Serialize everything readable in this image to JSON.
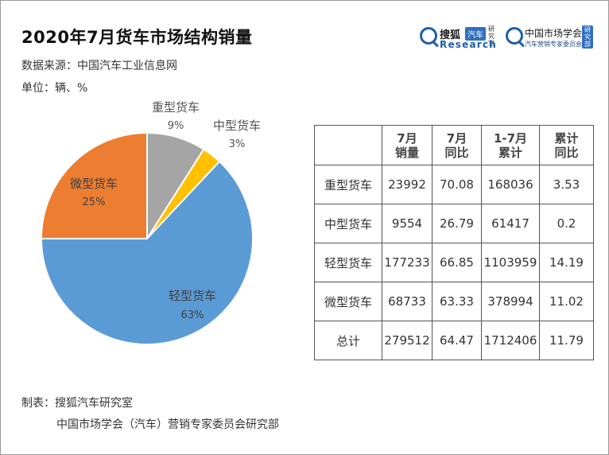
{
  "header": {
    "title": "2020年7月货车市场结构销量",
    "source": "数据来源：中国汽车工业信息网",
    "unit": "单位：辆、%"
  },
  "logos": {
    "sohu": {
      "name": "搜狐",
      "badge": "汽车",
      "side": "研究室",
      "sub": "Research"
    },
    "cma": {
      "name": "中国市场学会",
      "sub": "汽车营销专家委员会",
      "tag": "研究部"
    }
  },
  "chart_data": {
    "type": "pie",
    "slices": [
      {
        "label": "重型货车",
        "pct_label": "9%",
        "value": 9,
        "color": "#a5a5a5"
      },
      {
        "label": "中型货车",
        "pct_label": "3%",
        "value": 3,
        "color": "#ffc000"
      },
      {
        "label": "轻型货车",
        "pct_label": "63%",
        "value": 63,
        "color": "#5b9bd5"
      },
      {
        "label": "微型货车",
        "pct_label": "25%",
        "value": 25,
        "color": "#ed7d31"
      }
    ],
    "start_angle_deg": 0,
    "direction": "clockwise",
    "legend": "none"
  },
  "table": {
    "headers": [
      "",
      "7月\n销量",
      "7月\n同比",
      "1-7月\n累计",
      "累计\n同比"
    ],
    "rows": [
      [
        "重型货车",
        "23992",
        "70.08",
        "168036",
        "3.53"
      ],
      [
        "中型货车",
        "9554",
        "26.79",
        "61417",
        "0.2"
      ],
      [
        "轻型货车",
        "177233",
        "66.85",
        "1103959",
        "14.19"
      ],
      [
        "微型货车",
        "68733",
        "63.33",
        "378994",
        "11.02"
      ],
      [
        "总计",
        "279512",
        "64.47",
        "1712406",
        "11.79"
      ]
    ]
  },
  "footer": {
    "line1": "制表：搜狐汽车研究室",
    "line2": "中国市场学会（汽车）营销专家委员会研究部"
  }
}
